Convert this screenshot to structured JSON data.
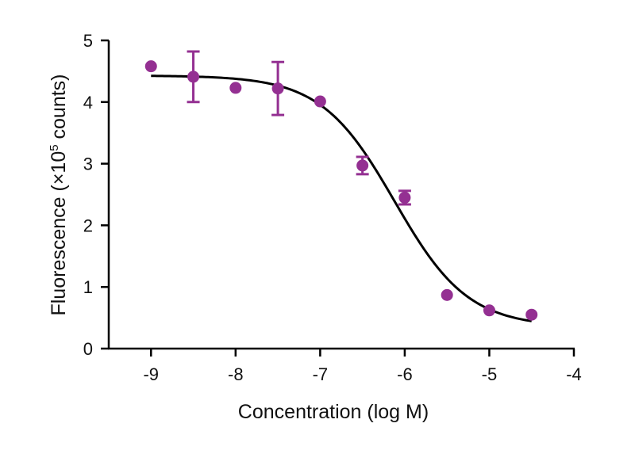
{
  "chart_data": {
    "type": "scatter",
    "xlabel": "Concentration (log M)",
    "ylabel_parts": {
      "before": "Fluorescence (×10",
      "superscript": "5",
      "after": " counts)"
    },
    "xlim": [
      -9.5,
      -4
    ],
    "ylim": [
      0,
      5
    ],
    "x_ticks": [
      -9,
      -8,
      -7,
      -6,
      -5,
      -4
    ],
    "x_tick_labels": [
      "-9",
      "-8",
      "-7",
      "-6",
      "-5",
      "-4"
    ],
    "y_ticks": [
      0,
      1,
      2,
      3,
      4,
      5
    ],
    "y_tick_labels": [
      "0",
      "1",
      "2",
      "3",
      "4",
      "5"
    ],
    "grid": false,
    "colors": {
      "points": "#943092",
      "curve": "#000000",
      "axes": "#000000"
    },
    "points": [
      {
        "x": -9.0,
        "y": 4.58
      },
      {
        "x": -8.5,
        "y": 4.41,
        "err": 0.41
      },
      {
        "x": -8.0,
        "y": 4.23
      },
      {
        "x": -7.5,
        "y": 4.22,
        "err": 0.43
      },
      {
        "x": -7.0,
        "y": 4.01
      },
      {
        "x": -6.5,
        "y": 2.97,
        "err": 0.14
      },
      {
        "x": -6.0,
        "y": 2.45,
        "err": 0.11
      },
      {
        "x": -5.5,
        "y": 0.87
      },
      {
        "x": -5.0,
        "y": 0.62
      },
      {
        "x": -4.5,
        "y": 0.55
      }
    ],
    "fit": {
      "model": "sigmoidal dose-response",
      "top": 4.43,
      "bottom": 0.35,
      "log_ec50": -6.12,
      "hill_slope": -1.0,
      "x_range": [
        -9.0,
        -4.5
      ]
    }
  }
}
